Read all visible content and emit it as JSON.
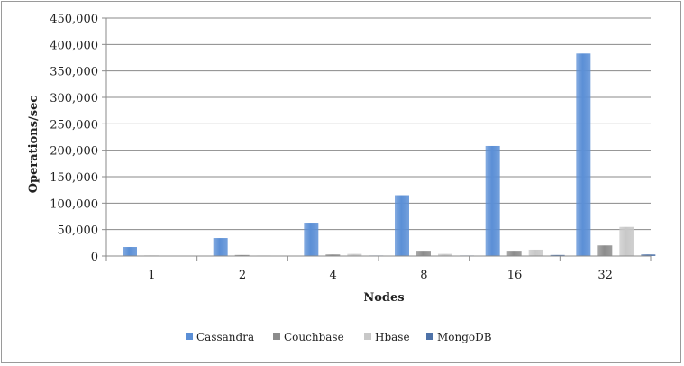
{
  "chart_data": {
    "type": "bar",
    "title": "",
    "xlabel": "Nodes",
    "ylabel": "Operations/sec",
    "categories": [
      "1",
      "2",
      "4",
      "8",
      "16",
      "32"
    ],
    "ylim": [
      0,
      450000
    ],
    "yticks": [
      0,
      50000,
      100000,
      150000,
      200000,
      250000,
      300000,
      350000,
      400000,
      450000
    ],
    "ytick_labels": [
      "0",
      "50,000",
      "100,000",
      "150,000",
      "200,000",
      "250,000",
      "300,000",
      "350,000",
      "400,000",
      "450,000"
    ],
    "grid": true,
    "legend_position": "bottom",
    "series": [
      {
        "name": "Cassandra",
        "color": "#5b8fd6",
        "values": [
          17000,
          34000,
          63000,
          115000,
          208000,
          383000
        ]
      },
      {
        "name": "Couchbase",
        "color": "#8c8c8c",
        "values": [
          1000,
          2000,
          3000,
          10000,
          10000,
          20000
        ]
      },
      {
        "name": "Hbase",
        "color": "#c8c8c8",
        "values": [
          0,
          1000,
          4000,
          4000,
          12000,
          55000
        ]
      },
      {
        "name": "MongoDB",
        "color": "#4e72a8",
        "values": [
          500,
          800,
          1000,
          1000,
          2000,
          3000
        ]
      }
    ]
  }
}
